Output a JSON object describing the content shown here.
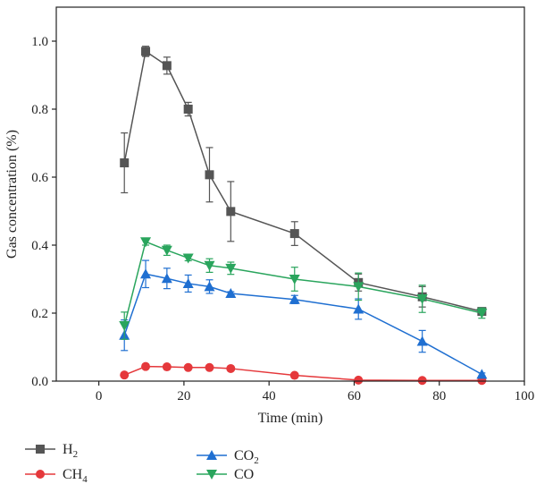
{
  "chart_data": {
    "type": "line",
    "xlabel": "Time (min)",
    "ylabel": "Gas concentration (%)",
    "xlim": [
      -10,
      100
    ],
    "ylim": [
      0,
      1.1
    ],
    "xticks": [
      0,
      20,
      40,
      60,
      80,
      100
    ],
    "yticks": [
      0.0,
      0.2,
      0.4,
      0.6,
      0.8,
      1.0
    ],
    "x_tick_labels": [
      "0",
      "20",
      "40",
      "60",
      "80",
      "100"
    ],
    "y_tick_labels": [
      "0.0",
      "0.2",
      "0.4",
      "0.6",
      "0.8",
      "1.0"
    ],
    "grid": false,
    "legend_position": "bottom",
    "series": [
      {
        "name": "H",
        "name_sub": "2",
        "color": "#555555",
        "marker": "square",
        "x": [
          6,
          11,
          16,
          21,
          26,
          31,
          46,
          61,
          76,
          90
        ],
        "y": [
          0.642,
          0.97,
          0.928,
          0.8,
          0.607,
          0.499,
          0.434,
          0.29,
          0.248,
          0.205
        ],
        "err": [
          0.088,
          0.015,
          0.025,
          0.02,
          0.08,
          0.088,
          0.035,
          0.025,
          0.03,
          0.01
        ]
      },
      {
        "name": "CH",
        "name_sub": "4",
        "color": "#e5383b",
        "marker": "circle",
        "x": [
          6,
          11,
          16,
          21,
          26,
          31,
          46,
          61,
          76,
          90
        ],
        "y": [
          0.018,
          0.043,
          0.042,
          0.04,
          0.04,
          0.037,
          0.017,
          0.003,
          0.002,
          0.002
        ],
        "err": [
          0.003,
          0.004,
          0.003,
          0.003,
          0.003,
          0.003,
          0.002,
          0.001,
          0.001,
          0.001
        ]
      },
      {
        "name": "CO",
        "name_sub": "2",
        "color": "#1f6fd1",
        "marker": "triangle-up",
        "x": [
          6,
          11,
          16,
          21,
          26,
          31,
          46,
          61,
          76,
          90
        ],
        "y": [
          0.135,
          0.315,
          0.302,
          0.287,
          0.278,
          0.258,
          0.24,
          0.212,
          0.117,
          0.02
        ],
        "err": [
          0.045,
          0.04,
          0.03,
          0.025,
          0.02,
          0.005,
          0.012,
          0.03,
          0.032,
          0.004
        ]
      },
      {
        "name": "CO",
        "name_sub": "",
        "color": "#2aa55d",
        "marker": "triangle-down",
        "x": [
          6,
          11,
          16,
          21,
          26,
          31,
          46,
          61,
          76,
          90
        ],
        "y": [
          0.163,
          0.41,
          0.385,
          0.362,
          0.34,
          0.332,
          0.3,
          0.278,
          0.242,
          0.2
        ],
        "err": [
          0.04,
          0.01,
          0.015,
          0.008,
          0.02,
          0.018,
          0.035,
          0.04,
          0.04,
          0.015
        ]
      }
    ]
  }
}
